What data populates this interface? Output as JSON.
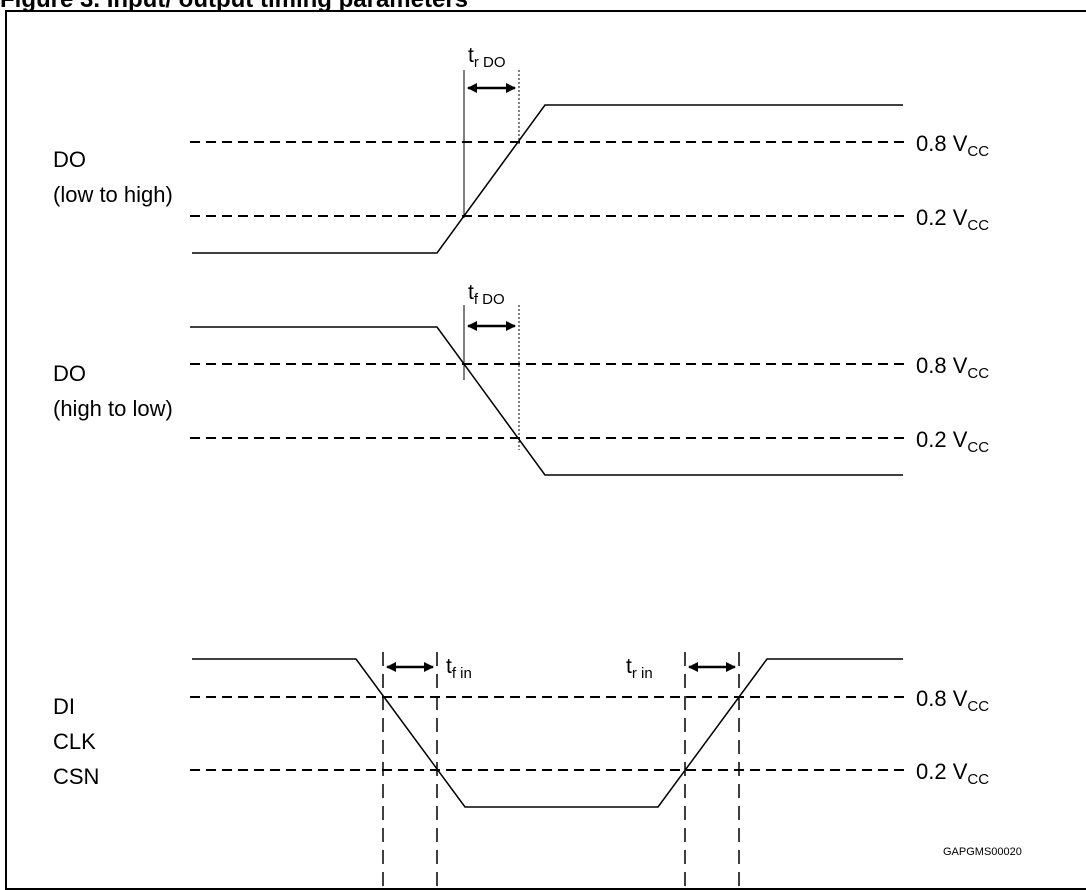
{
  "figure_title": "Figure 3. Input/ output timing parameters",
  "thresholds": {
    "high": {
      "value": "0.8 V",
      "sub": "CC"
    },
    "low": {
      "value": "0.2 V",
      "sub": "CC"
    }
  },
  "signals": {
    "do_rise": {
      "line1": "DO",
      "line2": "(low to high)"
    },
    "do_fall": {
      "line1": "DO",
      "line2": "(high to low)"
    },
    "inputs": {
      "line1": "DI",
      "line2": "CLK",
      "line3": "CSN"
    }
  },
  "timing_labels": {
    "tr_do": {
      "main": "t",
      "sub": "r DO"
    },
    "tf_do": {
      "main": "t",
      "sub": "f DO"
    },
    "tf_in": {
      "main": "t",
      "sub": "f in"
    },
    "tr_in": {
      "main": "t",
      "sub": "r in"
    }
  },
  "figure_code": "GAPGMS00020"
}
